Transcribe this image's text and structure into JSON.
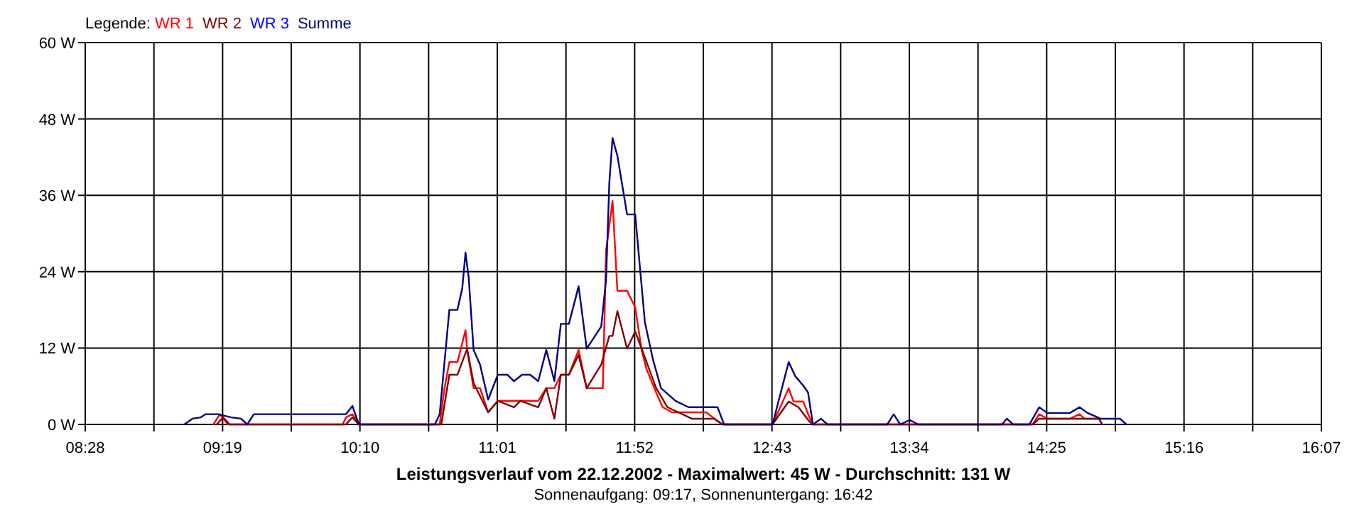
{
  "chart_data": {
    "type": "line",
    "title": "Leistungsverlauf vom 22.12.2002 - Maximalwert: 45 W - Durchschnitt: 131 W",
    "subtitle": "Sonnenaufgang: 09:17, Sonnenuntergang: 16:42",
    "legend_title": "Legende:",
    "legend": "top left",
    "grid": true,
    "line_style": "solid",
    "xlim": [
      8.4667,
      16.1167
    ],
    "xticks": [
      {
        "value": 8.4667,
        "label": "08:28"
      },
      {
        "value": 8.8917,
        "label": null
      },
      {
        "value": 9.3167,
        "label": "09:19"
      },
      {
        "value": 9.7417,
        "label": null
      },
      {
        "value": 10.1667,
        "label": "10:10"
      },
      {
        "value": 10.5917,
        "label": null
      },
      {
        "value": 11.0167,
        "label": "11:01"
      },
      {
        "value": 11.4417,
        "label": null
      },
      {
        "value": 11.8667,
        "label": "11:52"
      },
      {
        "value": 12.2917,
        "label": null
      },
      {
        "value": 12.7167,
        "label": "12:43"
      },
      {
        "value": 13.1417,
        "label": null
      },
      {
        "value": 13.5667,
        "label": "13:34"
      },
      {
        "value": 13.9917,
        "label": null
      },
      {
        "value": 14.4167,
        "label": "14:25"
      },
      {
        "value": 14.8417,
        "label": null
      },
      {
        "value": 15.2667,
        "label": "15:16"
      },
      {
        "value": 15.6917,
        "label": null
      },
      {
        "value": 16.1167,
        "label": "16:07"
      }
    ],
    "ylim": [
      0,
      60
    ],
    "yticks": [
      {
        "value": 0,
        "label": "0 W"
      },
      {
        "value": 12,
        "label": "12 W"
      },
      {
        "value": 24,
        "label": "24 W"
      },
      {
        "value": 36,
        "label": "36 W"
      },
      {
        "value": 48,
        "label": "48 W"
      },
      {
        "value": 60,
        "label": "60 W"
      }
    ],
    "series": [
      {
        "name": "WR 1",
        "color": "#ff0000",
        "x": [
          9.26,
          9.3,
          9.35,
          10.06,
          10.08,
          10.12,
          10.16,
          10.66,
          10.69,
          10.72,
          10.77,
          10.82,
          10.83,
          10.87,
          10.91,
          10.96,
          11.02,
          11.27,
          11.32,
          11.37,
          11.41,
          11.46,
          11.52,
          11.57,
          11.67,
          11.69,
          11.73,
          11.76,
          11.82,
          11.87,
          11.91,
          11.94,
          12.0,
          12.04,
          12.1,
          12.31,
          12.36,
          12.41,
          12.72,
          12.82,
          12.85,
          12.91,
          12.95,
          12.97,
          14.33,
          14.37,
          14.42,
          14.56,
          14.62,
          14.65,
          14.74,
          14.76
        ],
        "values": [
          0,
          1.6,
          0,
          0,
          1.1,
          1.6,
          0,
          0,
          5.7,
          9.8,
          9.8,
          14.8,
          11.7,
          5.7,
          5.7,
          1.9,
          3.7,
          3.7,
          5.7,
          5.7,
          7.8,
          7.8,
          11.7,
          5.7,
          5.7,
          27.3,
          35.1,
          21,
          21,
          18.4,
          11.7,
          8.7,
          5,
          2.7,
          1.9,
          1.9,
          0.9,
          0,
          0,
          5.7,
          3.6,
          3.6,
          1,
          0,
          0,
          1.6,
          0.9,
          0.9,
          1.6,
          0.9,
          0.9,
          0
        ]
      },
      {
        "name": "WR 2",
        "color": "#800000",
        "x": [
          9.28,
          9.32,
          9.36,
          10.08,
          10.12,
          10.16,
          10.67,
          10.72,
          10.77,
          10.83,
          10.87,
          10.96,
          11.02,
          11.12,
          11.16,
          11.27,
          11.32,
          11.37,
          11.41,
          11.46,
          11.52,
          11.57,
          11.66,
          11.71,
          11.73,
          11.76,
          11.82,
          11.87,
          11.91,
          12.0,
          12.07,
          12.22,
          12.36,
          12.41,
          12.72,
          12.82,
          12.88,
          12.95,
          12.97,
          14.33,
          14.37,
          14.74,
          14.76
        ],
        "values": [
          0,
          1.1,
          0,
          0,
          1.1,
          0,
          0,
          7.8,
          7.8,
          11.9,
          6.5,
          1.9,
          3.7,
          2.7,
          3.7,
          2.7,
          5.7,
          0.9,
          7.8,
          7.8,
          10.9,
          5.7,
          9.4,
          13.9,
          13.9,
          17.8,
          11.9,
          14.6,
          11.9,
          5.7,
          2.7,
          0.9,
          0.9,
          0,
          0,
          3.6,
          2.7,
          0.4,
          0,
          0,
          0.9,
          0.9,
          0
        ]
      },
      {
        "name": "WR 3",
        "color": "#0000ff"
      },
      {
        "name": "Summe",
        "color": "#000080",
        "x": [
          9.08,
          9.13,
          9.18,
          9.21,
          9.29,
          9.37,
          9.43,
          9.47,
          9.51,
          10.08,
          10.12,
          10.16,
          10.63,
          10.66,
          10.72,
          10.77,
          10.8,
          10.82,
          10.84,
          10.87,
          10.91,
          10.96,
          11.02,
          11.08,
          11.12,
          11.17,
          11.22,
          11.27,
          11.32,
          11.37,
          11.41,
          11.46,
          11.52,
          11.57,
          11.66,
          11.69,
          11.71,
          11.73,
          11.76,
          11.82,
          11.87,
          11.93,
          11.98,
          12.03,
          12.12,
          12.2,
          12.38,
          12.42,
          12.72,
          12.82,
          12.86,
          12.91,
          12.94,
          12.97,
          13.02,
          13.06,
          13.43,
          13.47,
          13.51,
          13.57,
          13.62,
          14.14,
          14.17,
          14.21,
          14.31,
          14.37,
          14.42,
          14.56,
          14.62,
          14.67,
          14.75,
          14.87,
          14.91
        ],
        "values": [
          0,
          0.9,
          1.1,
          1.6,
          1.6,
          1.1,
          0.9,
          0,
          1.6,
          1.6,
          2.9,
          0,
          0,
          1.6,
          18,
          18,
          21.4,
          27,
          23,
          11.7,
          9.4,
          3.9,
          7.8,
          7.8,
          6.8,
          7.8,
          7.8,
          6.8,
          11.7,
          6.8,
          15.8,
          15.8,
          21.7,
          11.9,
          15.4,
          22.8,
          38,
          45,
          42.2,
          33,
          33,
          16.1,
          10.2,
          5.7,
          3.7,
          2.7,
          2.7,
          0,
          0,
          9.8,
          7.6,
          6.1,
          5,
          0,
          0.9,
          0,
          0,
          1.6,
          0,
          0.7,
          0,
          0,
          0.9,
          0,
          0,
          2.7,
          1.8,
          1.8,
          2.7,
          1.8,
          0.9,
          0.9,
          0
        ]
      }
    ]
  }
}
